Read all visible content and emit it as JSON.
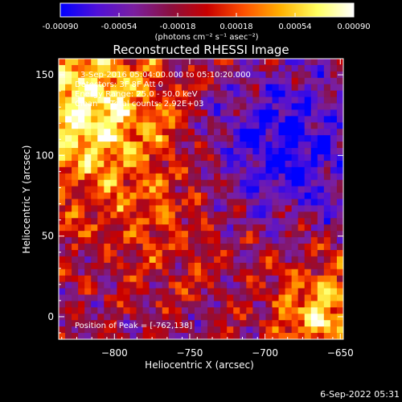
{
  "colorbar": {
    "tick_labels": [
      "-0.00090",
      "-0.00054",
      "-0.00018",
      "0.00018",
      "0.00054",
      "0.00090"
    ],
    "unit_label": "(photons cm⁻² s⁻¹ asec⁻²)",
    "colors": [
      "#0000ff",
      "#5010d8",
      "#7a1fa0",
      "#8a1040",
      "#c80000",
      "#ff5000",
      "#ffb000",
      "#ffff60",
      "#ffffff"
    ]
  },
  "chart_data": {
    "type": "heatmap",
    "title": "Reconstructed RHESSI Image",
    "xlabel": "Heliocentric X (arcsec)",
    "ylabel": "Heliocentric Y (arcsec)",
    "xlim": [
      -837,
      -648
    ],
    "ylim": [
      -14,
      160
    ],
    "xticks": [
      -800,
      -750,
      -700,
      -650
    ],
    "xtick_labels": [
      "−800",
      "−750",
      "−700",
      "−650"
    ],
    "yticks": [
      0,
      50,
      100,
      150
    ],
    "ytick_labels": [
      "0",
      "50",
      "100",
      "150"
    ],
    "value_range": [
      -0.0009,
      0.0009
    ],
    "annotations": [
      "3-Sep-2016 05:04:00.000 to 05:10:20.000",
      "Detectors: 3F 8F  Att 0",
      "Energy Range: 25.0 - 50.0 keV",
      "Clean     Total counts: 2.92E+03"
    ],
    "peak_label": "Position of Peak = [-762,138]"
  },
  "footer": {
    "timestamp": "6-Sep-2022 05:31"
  }
}
